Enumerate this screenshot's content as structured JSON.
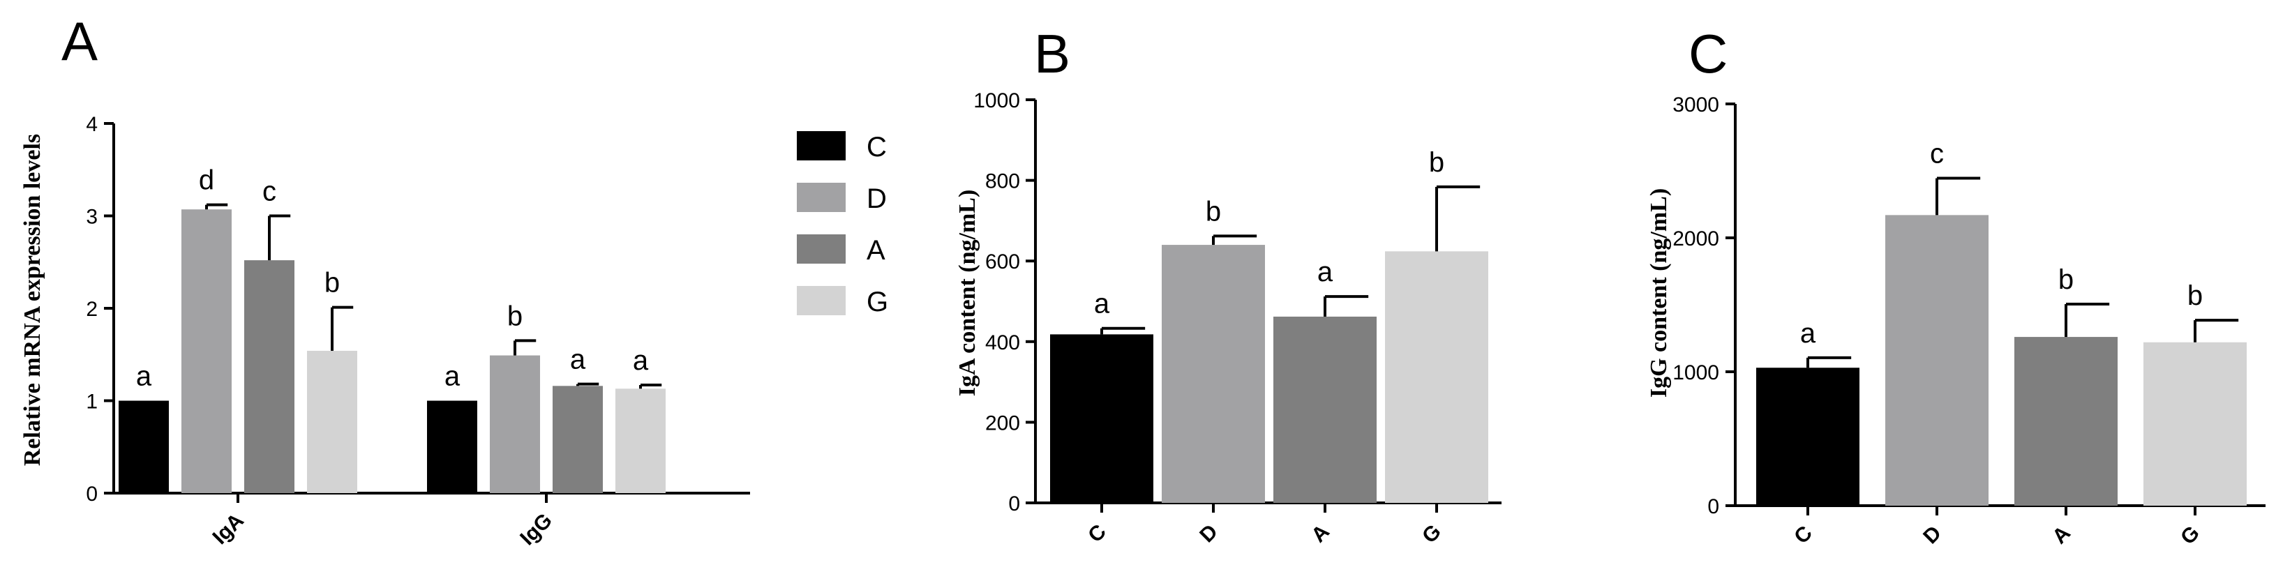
{
  "colors": {
    "C": "#000000",
    "D": "#a2a2a4",
    "A": "#7f7f7f",
    "G": "#d3d3d3"
  },
  "legend": {
    "entries": [
      "C",
      "D",
      "A",
      "G"
    ],
    "placement": "right of panel A"
  },
  "chart_data": [
    {
      "panel": "A",
      "type": "bar",
      "ylabel": "Relative mRNA expression levels",
      "xlabel": "",
      "ylim": [
        0,
        4
      ],
      "yticks": [
        "0",
        "1",
        "2",
        "3",
        "4"
      ],
      "categories": [
        "IgA",
        "IgG"
      ],
      "series": [
        {
          "name": "C",
          "values": [
            1.0,
            1.0
          ],
          "errors": [
            0.0,
            0.0
          ],
          "letters": [
            "a",
            "a"
          ]
        },
        {
          "name": "D",
          "values": [
            3.07,
            1.49
          ],
          "errors": [
            0.05,
            0.16
          ],
          "letters": [
            "d",
            "b"
          ]
        },
        {
          "name": "A",
          "values": [
            2.52,
            1.16
          ],
          "errors": [
            0.48,
            0.02
          ],
          "letters": [
            "c",
            "a"
          ]
        },
        {
          "name": "G",
          "values": [
            1.54,
            1.13
          ],
          "errors": [
            0.47,
            0.04
          ],
          "letters": [
            "b",
            "a"
          ]
        }
      ]
    },
    {
      "panel": "B",
      "type": "bar",
      "ylabel": "IgA content (ng/mL)",
      "xlabel": "",
      "ylim": [
        0,
        1000
      ],
      "yticks": [
        "0",
        "200",
        "400",
        "600",
        "800",
        "1000"
      ],
      "categories": [
        "C",
        "D",
        "A",
        "G"
      ],
      "values": [
        418,
        640,
        462,
        624
      ],
      "errors": [
        15,
        22,
        50,
        160
      ],
      "letters": [
        "a",
        "b",
        "a",
        "b"
      ]
    },
    {
      "panel": "C",
      "type": "bar",
      "ylabel": "IgG content (ng/mL)",
      "xlabel": "",
      "ylim": [
        0,
        3000
      ],
      "yticks": [
        "0",
        "1000",
        "2000",
        "3000"
      ],
      "categories": [
        "C",
        "D",
        "A",
        "G"
      ],
      "values": [
        1030,
        2170,
        1260,
        1220
      ],
      "errors": [
        75,
        275,
        245,
        165
      ],
      "letters": [
        "a",
        "c",
        "b",
        "b"
      ]
    }
  ]
}
